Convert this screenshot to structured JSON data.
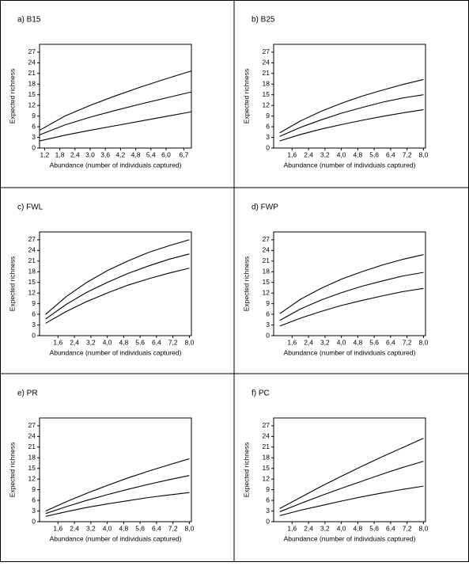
{
  "chart_data": [
    {
      "type": "line",
      "title": "a) B15",
      "ylabel": "Expected richness",
      "xlabel": "Abundance (number of individuals captured)",
      "x": [
        1,
        2,
        3,
        4,
        5,
        6,
        7
      ],
      "series": [
        {
          "color": "#000000",
          "values": [
            5,
            9,
            12,
            14.7,
            17.2,
            19.5,
            21.7
          ]
        },
        {
          "color": "#000000",
          "values": [
            3.7,
            6.5,
            8.7,
            10.6,
            12.4,
            14.1,
            15.8
          ]
        },
        {
          "color": "#000000",
          "values": [
            2,
            3.6,
            5,
            6.3,
            7.6,
            8.9,
            10.2
          ]
        }
      ],
      "xlim": [
        1,
        7
      ],
      "ylim": [
        0,
        29.2
      ],
      "xticks": [
        {
          "value": 1.2,
          "label": "1,2"
        },
        {
          "value": 1.8,
          "label": "1,8"
        },
        {
          "value": 2.4,
          "label": "2,4"
        },
        {
          "value": 3.0,
          "label": "3,0"
        },
        {
          "value": 3.6,
          "label": "3,6"
        },
        {
          "value": 4.2,
          "label": "4,2"
        },
        {
          "value": 4.8,
          "label": "4,8"
        },
        {
          "value": 5.4,
          "label": "5,4"
        },
        {
          "value": 6.0,
          "label": "6,0"
        },
        {
          "value": 6.7,
          "label": "6,7"
        }
      ],
      "yticks": [
        0,
        3,
        6,
        9,
        12,
        15,
        18,
        21,
        24,
        27
      ]
    },
    {
      "type": "line",
      "title": "b) B25",
      "ylabel": "Expected richness",
      "xlabel": "Abundance (number of individuals captured)",
      "x": [
        1,
        2,
        3,
        4,
        5,
        6,
        7,
        8
      ],
      "series": [
        {
          "color": "#000000",
          "values": [
            4.3,
            7.6,
            10.3,
            12.6,
            14.6,
            16.3,
            17.9,
            19.3
          ]
        },
        {
          "color": "#000000",
          "values": [
            3.3,
            5.8,
            7.9,
            9.8,
            11.4,
            12.9,
            14.1,
            15
          ]
        },
        {
          "color": "#000000",
          "values": [
            2,
            3.8,
            5.3,
            6.6,
            7.8,
            8.9,
            9.9,
            10.8
          ]
        }
      ],
      "xlim": [
        0.7,
        8.1
      ],
      "ylim": [
        0,
        29.2
      ],
      "xticks": [
        {
          "value": 1.6,
          "label": "1,6"
        },
        {
          "value": 2.4,
          "label": "2,4"
        },
        {
          "value": 3.2,
          "label": "3,2"
        },
        {
          "value": 4.0,
          "label": "4,0"
        },
        {
          "value": 4.8,
          "label": "4,8"
        },
        {
          "value": 5.6,
          "label": "5,6"
        },
        {
          "value": 6.4,
          "label": "6,4"
        },
        {
          "value": 7.2,
          "label": "7,2"
        },
        {
          "value": 8.0,
          "label": "8,0"
        }
      ],
      "yticks": [
        0,
        3,
        6,
        9,
        12,
        15,
        18,
        21,
        24,
        27
      ]
    },
    {
      "type": "line",
      "title": "c) FWL",
      "ylabel": "Expected richness",
      "xlabel": "Abundance (number of individuals captured)",
      "x": [
        1,
        2,
        3,
        4,
        5,
        6,
        7,
        8
      ],
      "series": [
        {
          "color": "#000000",
          "values": [
            6,
            11,
            15,
            18.3,
            21,
            23.4,
            25.3,
            27
          ]
        },
        {
          "color": "#000000",
          "values": [
            4.7,
            8.8,
            12.2,
            15,
            17.5,
            19.6,
            21.5,
            23
          ]
        },
        {
          "color": "#000000",
          "values": [
            3.5,
            6.8,
            9.6,
            12,
            14.2,
            16,
            17.6,
            19
          ]
        }
      ],
      "xlim": [
        0.7,
        8.1
      ],
      "ylim": [
        0,
        29.2
      ],
      "xticks": [
        {
          "value": 1.6,
          "label": "1,6"
        },
        {
          "value": 2.4,
          "label": "2,4"
        },
        {
          "value": 3.2,
          "label": "3,2"
        },
        {
          "value": 4.0,
          "label": "4,0"
        },
        {
          "value": 4.8,
          "label": "4,8"
        },
        {
          "value": 5.6,
          "label": "5,6"
        },
        {
          "value": 6.4,
          "label": "6,4"
        },
        {
          "value": 7.2,
          "label": "7,2"
        },
        {
          "value": 8.0,
          "label": "8,0"
        }
      ],
      "yticks": [
        0,
        3,
        6,
        9,
        12,
        15,
        18,
        21,
        24,
        27
      ]
    },
    {
      "type": "line",
      "title": "d) FWP",
      "ylabel": "Expected richness",
      "xlabel": "Abundance (number of individuals captured)",
      "x": [
        1,
        2,
        3,
        4,
        5,
        6,
        7,
        8
      ],
      "series": [
        {
          "color": "#000000",
          "values": [
            6.2,
            10.2,
            13.3,
            15.9,
            18,
            19.9,
            21.5,
            22.8
          ]
        },
        {
          "color": "#000000",
          "values": [
            4.3,
            7.5,
            10,
            12.1,
            13.9,
            15.4,
            16.8,
            17.8
          ]
        },
        {
          "color": "#000000",
          "values": [
            2.7,
            4.9,
            6.8,
            8.5,
            9.9,
            11.2,
            12.4,
            13.3
          ]
        }
      ],
      "xlim": [
        0.7,
        8.1
      ],
      "ylim": [
        0,
        29.2
      ],
      "xticks": [
        {
          "value": 1.6,
          "label": "1,6"
        },
        {
          "value": 2.4,
          "label": "2,4"
        },
        {
          "value": 3.2,
          "label": "3,2"
        },
        {
          "value": 4.0,
          "label": "4,0"
        },
        {
          "value": 4.8,
          "label": "4,8"
        },
        {
          "value": 5.6,
          "label": "5,6"
        },
        {
          "value": 6.4,
          "label": "6,4"
        },
        {
          "value": 7.2,
          "label": "7,2"
        },
        {
          "value": 8.0,
          "label": "8,0"
        }
      ],
      "yticks": [
        0,
        3,
        6,
        9,
        12,
        15,
        18,
        21,
        24,
        27
      ]
    },
    {
      "type": "line",
      "title": "e) PR",
      "ylabel": "Expected richness",
      "xlabel": "Abundance (number of individuals captured)",
      "x": [
        1,
        2,
        3,
        4,
        5,
        6,
        7,
        8
      ],
      "series": [
        {
          "color": "#000000",
          "values": [
            3,
            5.6,
            8,
            10.2,
            12.3,
            14.2,
            16,
            17.7
          ]
        },
        {
          "color": "#000000",
          "values": [
            2.3,
            4.2,
            6,
            7.6,
            9.1,
            10.5,
            11.8,
            13
          ]
        },
        {
          "color": "#000000",
          "values": [
            1.5,
            2.8,
            4,
            5,
            5.9,
            6.8,
            7.5,
            8.2
          ]
        }
      ],
      "xlim": [
        0.7,
        8.1
      ],
      "ylim": [
        0,
        29.2
      ],
      "xticks": [
        {
          "value": 1.6,
          "label": "1,6"
        },
        {
          "value": 2.4,
          "label": "2,4"
        },
        {
          "value": 3.2,
          "label": "3,2"
        },
        {
          "value": 4.0,
          "label": "4,0"
        },
        {
          "value": 4.8,
          "label": "4,8"
        },
        {
          "value": 5.6,
          "label": "5,6"
        },
        {
          "value": 6.4,
          "label": "6,4"
        },
        {
          "value": 7.2,
          "label": "7,2"
        },
        {
          "value": 8.0,
          "label": "8,0"
        }
      ],
      "yticks": [
        0,
        3,
        6,
        9,
        12,
        15,
        18,
        21,
        24,
        27
      ]
    },
    {
      "type": "line",
      "title": "f) PC",
      "ylabel": "Expected richness",
      "xlabel": "Abundance (number of individuals captured)",
      "x": [
        1,
        2,
        3,
        4,
        5,
        6,
        7,
        8
      ],
      "series": [
        {
          "color": "#000000",
          "values": [
            3.7,
            6.8,
            9.9,
            12.8,
            15.6,
            18.3,
            20.9,
            23.5
          ]
        },
        {
          "color": "#000000",
          "values": [
            2.8,
            5.1,
            7.3,
            9.4,
            11.4,
            13.4,
            15.3,
            17
          ]
        },
        {
          "color": "#000000",
          "values": [
            1.7,
            3.2,
            4.5,
            5.8,
            7,
            8.1,
            9.1,
            10
          ]
        }
      ],
      "xlim": [
        0.7,
        8.1
      ],
      "ylim": [
        0,
        29.2
      ],
      "xticks": [
        {
          "value": 1.6,
          "label": "1,6"
        },
        {
          "value": 2.4,
          "label": "2,4"
        },
        {
          "value": 3.2,
          "label": "3,2"
        },
        {
          "value": 4.0,
          "label": "4,0"
        },
        {
          "value": 4.8,
          "label": "4,8"
        },
        {
          "value": 5.6,
          "label": "5,6"
        },
        {
          "value": 6.4,
          "label": "6,4"
        },
        {
          "value": 7.2,
          "label": "7,2"
        },
        {
          "value": 8.0,
          "label": "8,0"
        }
      ],
      "yticks": [
        0,
        3,
        6,
        9,
        12,
        15,
        18,
        21,
        24,
        27
      ]
    }
  ]
}
